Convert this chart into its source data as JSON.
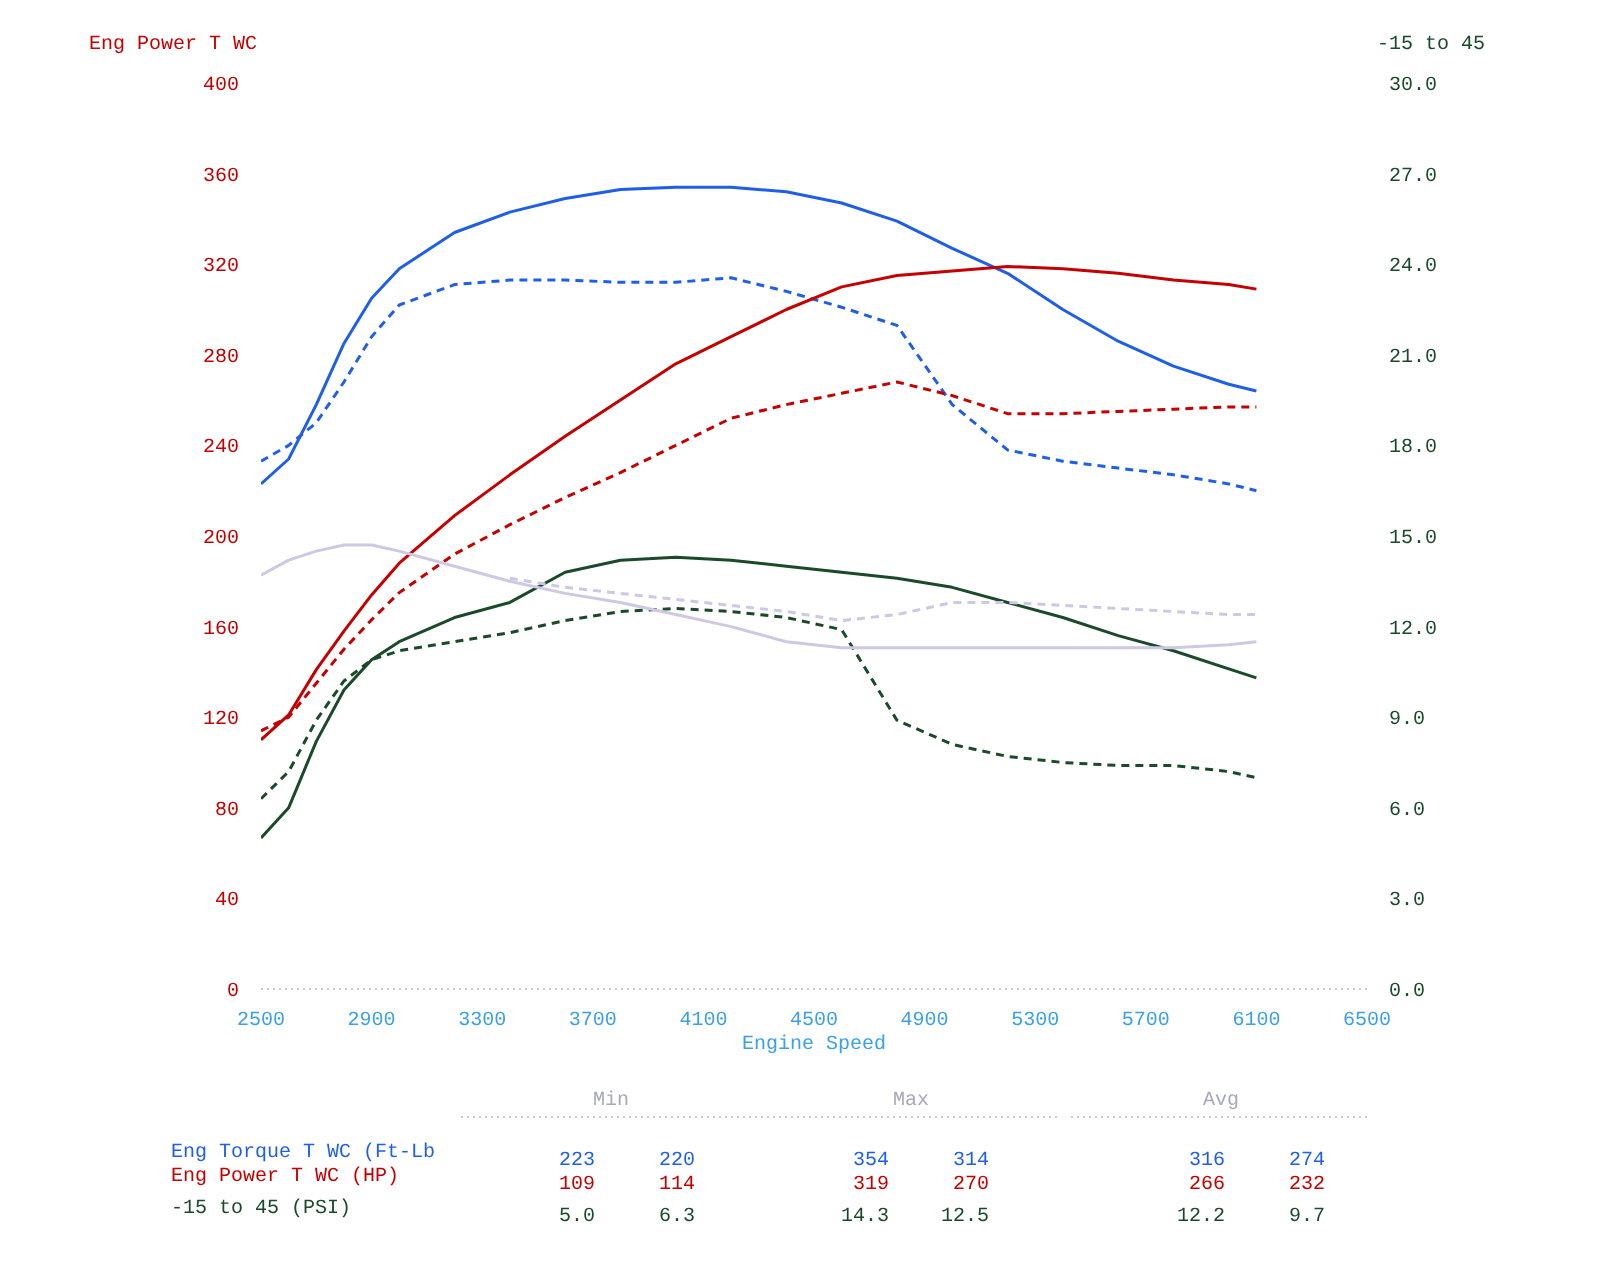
{
  "chart_data": {
    "type": "line",
    "xlabel": "Engine Speed",
    "ylabel": "Eng Power T WC",
    "y2label": "-15 to 45",
    "x": [
      2500,
      2600,
      2700,
      2800,
      2900,
      3000,
      3200,
      3400,
      3600,
      3800,
      4000,
      4200,
      4400,
      4600,
      4800,
      5000,
      5200,
      5400,
      5600,
      5800,
      6000,
      6100
    ],
    "xlim": [
      2500,
      6500
    ],
    "xticks": [
      2500,
      2900,
      3300,
      3700,
      4100,
      4500,
      4900,
      5300,
      5700,
      6100,
      6500
    ],
    "ylim": [
      0,
      400
    ],
    "yticks": [
      0,
      40,
      80,
      120,
      160,
      200,
      240,
      280,
      320,
      360,
      400
    ],
    "y2lim": [
      0,
      30
    ],
    "y2ticks": [
      {
        "value": 0,
        "label": "0.0"
      },
      {
        "value": 3,
        "label": "3.0"
      },
      {
        "value": 6,
        "label": "6.0"
      },
      {
        "value": 9,
        "label": "9.0"
      },
      {
        "value": 12,
        "label": "12.0"
      },
      {
        "value": 15,
        "label": "15.0"
      },
      {
        "value": 18,
        "label": "18.0"
      },
      {
        "value": 21,
        "label": "21.0"
      },
      {
        "value": 24,
        "label": "24.0"
      },
      {
        "value": 27,
        "label": "27.0"
      },
      {
        "value": 30,
        "label": "30.0"
      }
    ],
    "grid": false,
    "series": [
      {
        "color": "#1f5fe8",
        "line_style": "solid",
        "values": [
          223,
          234,
          258,
          285,
          305,
          318,
          334,
          343,
          349,
          353,
          354,
          354,
          352,
          347,
          339,
          327,
          316,
          300,
          286,
          275,
          267,
          264
        ]
      },
      {
        "color": "#1f5fe8",
        "line_style": "dashed",
        "values": [
          233,
          240,
          250,
          268,
          288,
          302,
          311,
          313,
          313,
          312,
          312,
          314,
          308,
          301,
          293,
          258,
          238,
          233,
          230,
          227,
          223,
          220
        ]
      },
      {
        "color": "#c40000",
        "line_style": "solid",
        "values": [
          110,
          121,
          141,
          158,
          174,
          188,
          209,
          227,
          244,
          260,
          276,
          288,
          300,
          310,
          315,
          317,
          319,
          318,
          316,
          313,
          311,
          309
        ]
      },
      {
        "color": "#c40000",
        "line_style": "dashed",
        "values": [
          114,
          120,
          135,
          150,
          163,
          175,
          192,
          205,
          217,
          228,
          240,
          252,
          258,
          263,
          268,
          262,
          254,
          254,
          255,
          256,
          257,
          257
        ]
      },
      {
        "color": "#1a4a2a",
        "line_style": "solid",
        "axis": "y2",
        "values": [
          5.0,
          6.0,
          8.2,
          9.9,
          10.9,
          11.5,
          12.3,
          12.8,
          13.8,
          14.2,
          14.3,
          14.2,
          14.0,
          13.8,
          13.6,
          13.3,
          12.8,
          12.3,
          11.7,
          11.2,
          10.6,
          10.3
        ]
      },
      {
        "color": "#1a4a2a",
        "line_style": "dashed",
        "axis": "y2",
        "values": [
          6.3,
          7.2,
          8.9,
          10.2,
          10.9,
          11.2,
          11.5,
          11.8,
          12.2,
          12.5,
          12.6,
          12.5,
          12.3,
          11.9,
          8.9,
          8.1,
          7.7,
          7.5,
          7.4,
          7.4,
          7.2,
          7.0
        ]
      },
      {
        "color": "#cfc8e4",
        "line_style": "solid",
        "axis": "y2",
        "values": [
          13.7,
          14.2,
          14.5,
          14.7,
          14.7,
          14.5,
          14.0,
          13.5,
          13.1,
          12.8,
          12.4,
          12.0,
          11.5,
          11.3,
          11.3,
          11.3,
          11.3,
          11.3,
          11.3,
          11.3,
          11.4,
          11.5
        ]
      },
      {
        "color": "#cfc8e4",
        "line_style": "dashed",
        "axis": "y2",
        "values": [
          null,
          null,
          null,
          null,
          null,
          null,
          null,
          13.6,
          13.3,
          13.1,
          12.9,
          12.7,
          12.5,
          12.2,
          12.4,
          12.8,
          12.8,
          12.7,
          12.6,
          12.5,
          12.4,
          12.4
        ]
      }
    ],
    "annotations": [
      "Min",
      "Max",
      "Avg",
      "Eng Torque T WC (Ft-Lb",
      "223",
      "220",
      "354",
      "314",
      "316",
      "274",
      "Eng Power T WC (HP)",
      "109",
      "114",
      "319",
      "270",
      "266",
      "232",
      "-15 to 45 (PSI)",
      "5.0",
      "6.3",
      "14.3",
      "12.5",
      "12.2",
      "9.7"
    ]
  }
}
